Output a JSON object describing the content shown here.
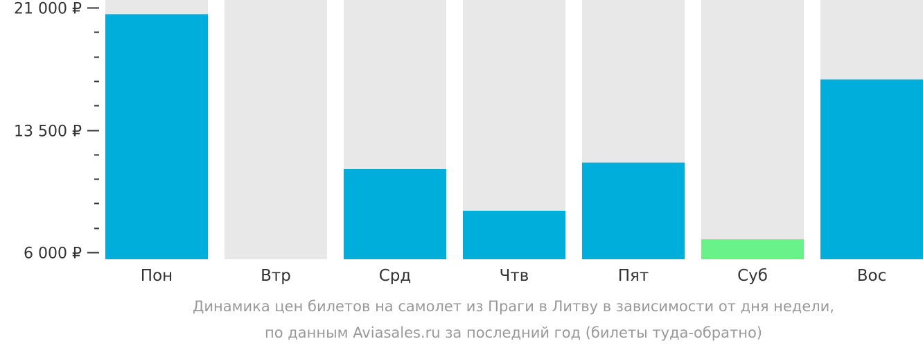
{
  "chart_data": {
    "type": "bar",
    "categories": [
      "Пон",
      "Втр",
      "Срд",
      "Чтв",
      "Пят",
      "Суб",
      "Вос"
    ],
    "values": [
      20600,
      null,
      11100,
      8550,
      11500,
      6800,
      16600
    ],
    "highlight_index": 5,
    "ylim": [
      6000,
      21000
    ],
    "y_major_ticks": [
      6000,
      13500,
      21000
    ],
    "y_tick_labels": [
      "6 000 ₽",
      "13 500 ₽",
      "21 000 ₽"
    ],
    "y_minor_step": 1500,
    "caption_lines": [
      "Динамика цен билетов на самолет из Праги в Литву в зависимости от дня недели,",
      "по данным Aviasales.ru за последний год (билеты туда-обратно)"
    ],
    "colors": {
      "bar": "#00AEDB",
      "highlight": "#6AF28A",
      "track": "#E8E8E8",
      "axis_text": "#333333",
      "caption": "#999999"
    }
  }
}
